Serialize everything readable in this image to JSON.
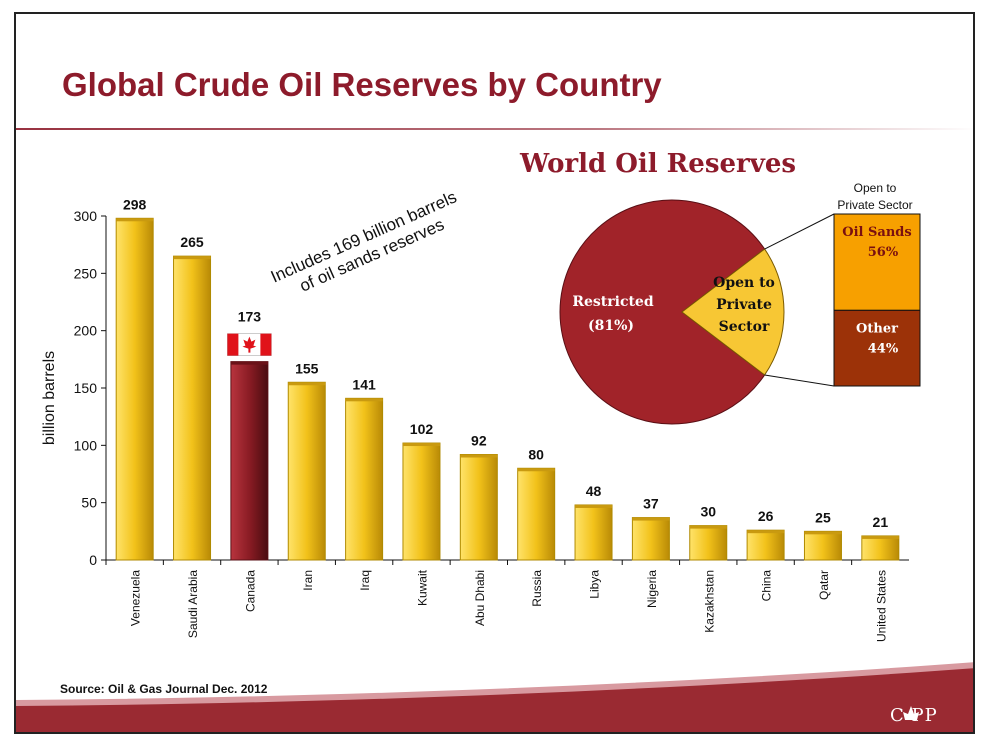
{
  "page": {
    "title": "Global Crude Oil Reserves by Country",
    "source": "Source: Oil & Gas Journal Dec. 2012",
    "logo_text": "C  PP"
  },
  "chart_data": [
    {
      "type": "bar",
      "ylabel": "billion barrels",
      "ylim": [
        0,
        300
      ],
      "yticks": [
        0,
        50,
        100,
        150,
        200,
        250,
        300
      ],
      "categories": [
        "Venezuela",
        "Saudi Arabia",
        "Canada",
        "Iran",
        "Iraq",
        "Kuwait",
        "Abu Dhabi",
        "Russia",
        "Libya",
        "Nigeria",
        "Kazakhstan",
        "China",
        "Qatar",
        "United States"
      ],
      "values": [
        298,
        265,
        173,
        155,
        141,
        102,
        92,
        80,
        48,
        37,
        30,
        26,
        25,
        21
      ],
      "highlight": "Canada",
      "colors": {
        "bar": "#f2c21a",
        "bar_edge": "#b08a00",
        "highlight": "#8a1c24",
        "highlight_edge": "#5a0f15"
      },
      "annotation": [
        "Includes 169 billion barrels",
        "of oil sands reserves"
      ]
    },
    {
      "type": "pie",
      "title": "World Oil Reserves",
      "slices": [
        {
          "label": "Restricted",
          "value_label": "(81%)",
          "value": 81,
          "color": "#a12329"
        },
        {
          "label_lines": [
            "Open to",
            "Private",
            "Sector"
          ],
          "value": 19,
          "color": "#f7c734"
        }
      ],
      "breakdown": {
        "title_lines": [
          "Open to",
          "Private Sector"
        ],
        "parts": [
          {
            "label": "Oil Sands",
            "value_label": "56%",
            "value": 56,
            "color": "#f7a000"
          },
          {
            "label": "Other",
            "value_label": "44%",
            "value": 44,
            "color": "#9c3208"
          }
        ]
      }
    }
  ]
}
